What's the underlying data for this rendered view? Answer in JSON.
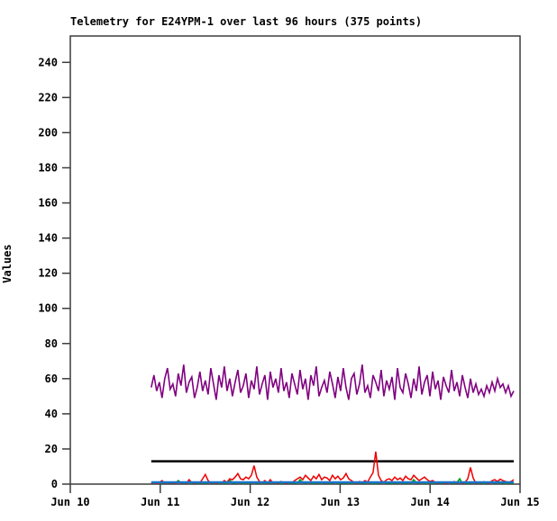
{
  "window": {
    "background": "#FFFFFF"
  },
  "chart_data": {
    "type": "line",
    "title": "Telemetry for E24YPM-1 over last 96 hours (375 points)",
    "points_stated": 375,
    "ylabel": "Values",
    "xlabel": "",
    "ylim": [
      0,
      255
    ],
    "yticks": [
      0,
      20,
      40,
      60,
      80,
      100,
      120,
      140,
      160,
      180,
      200,
      220,
      240
    ],
    "x_axis_range_days": [
      0,
      5
    ],
    "xticks": [
      {
        "day": 0,
        "label": "Jun 10"
      },
      {
        "day": 1,
        "label": "Jun 11"
      },
      {
        "day": 2,
        "label": "Jun 12"
      },
      {
        "day": 3,
        "label": "Jun 13"
      },
      {
        "day": 4,
        "label": "Jun 14"
      },
      {
        "day": 5,
        "label": "Jun 15"
      }
    ],
    "data_x_range_days": [
      0.9,
      4.93
    ],
    "grid": false,
    "legend": "none",
    "axis_color": "#3C3C3C",
    "text_color": "#000000",
    "threshold_line": {
      "name": "threshold-line",
      "value": 13,
      "color": "#000000",
      "width": 2.5
    },
    "series": [
      {
        "name": "series-purple",
        "color": "#800080",
        "width": 1.6,
        "approx_range": [
          47,
          68
        ],
        "values": [
          55,
          62,
          53,
          58,
          49,
          60,
          66,
          54,
          57,
          50,
          63,
          56,
          68,
          52,
          58,
          61,
          49,
          55,
          64,
          53,
          59,
          51,
          66,
          57,
          48,
          62,
          55,
          67,
          53,
          60,
          50,
          58,
          65,
          52,
          56,
          63,
          49,
          59,
          54,
          67,
          51,
          57,
          62,
          48,
          64,
          55,
          60,
          52,
          66,
          53,
          58,
          49,
          63,
          57,
          51,
          65,
          54,
          60,
          48,
          62,
          56,
          67,
          50,
          55,
          59,
          52,
          64,
          57,
          49,
          61,
          53,
          66,
          55,
          48,
          60,
          63,
          51,
          57,
          68,
          52,
          56,
          49,
          62,
          58,
          53,
          65,
          50,
          59,
          54,
          61,
          48,
          66,
          55,
          52,
          63,
          57,
          49,
          60,
          53,
          67,
          51,
          58,
          62,
          50,
          64,
          54,
          59,
          48,
          61,
          56,
          52,
          65,
          53,
          58,
          50,
          62,
          55,
          49,
          60,
          52,
          57,
          51,
          54,
          50,
          56,
          52,
          58,
          53,
          60,
          55,
          57,
          52,
          56,
          50,
          53
        ]
      },
      {
        "name": "series-green",
        "color": "#00A000",
        "width": 1.6,
        "approx_range": [
          0.3,
          3
        ],
        "values": [
          0.5,
          0.8,
          0.4,
          1,
          0.6,
          0.5,
          0.9,
          0.4,
          0.7,
          0.5,
          2,
          0.6,
          0.8,
          0.5,
          1,
          0.4,
          0.8,
          0.6,
          0.5,
          0.9,
          0.5,
          0.7,
          1.2,
          0.5,
          0.8,
          0.4,
          1,
          0.6,
          0.5,
          2.2,
          0.8,
          0.5,
          1,
          0.7,
          0.4,
          0.9,
          0.5,
          0.8,
          1.1,
          0.6,
          0.5,
          1,
          0.4,
          0.8,
          0.6,
          1.2,
          0.5,
          0.9,
          0.4,
          0.7,
          1,
          0.5,
          0.8,
          0.6,
          0.4,
          2.5,
          0.9,
          0.5,
          1,
          0.7,
          0.4,
          0.8,
          0.5,
          1.1,
          0.6,
          0.9,
          0.5,
          0.7,
          1,
          0.4,
          0.8,
          0.6,
          0.5,
          0.9,
          0.4,
          1,
          0.5,
          0.8,
          0.7,
          0.5,
          1.2,
          0.6,
          0.4,
          0.9,
          0.5,
          0.8,
          1,
          0.5,
          0.7,
          0.4,
          0.8,
          0.5,
          1.1,
          0.6,
          0.5,
          0.9,
          0.4,
          2.5,
          0.8,
          0.5,
          1,
          0.6,
          0.4,
          0.9,
          0.5,
          0.7,
          1.2,
          0.5,
          0.8,
          0.4,
          1,
          0.5,
          0.6,
          0.9,
          3,
          0.5,
          0.8,
          0.4,
          0.7,
          1,
          0.5,
          0.9,
          0.6,
          0.4,
          0.8,
          0.5,
          1.1,
          0.6,
          0.9,
          0.5,
          0.7,
          0.4,
          0.8,
          0.5,
          0.6
        ]
      },
      {
        "name": "series-red",
        "color": "#EE0000",
        "width": 1.5,
        "approx_range": [
          0.3,
          18.5
        ],
        "values": [
          0.5,
          1,
          0.3,
          0.8,
          2,
          0.5,
          1.2,
          0.4,
          0.9,
          0.3,
          1.5,
          0.6,
          1,
          0.4,
          2.5,
          0.8,
          0.5,
          1.1,
          0.6,
          3,
          5.5,
          2,
          0.5,
          1,
          0.4,
          1.2,
          0.6,
          2,
          1,
          3,
          2.5,
          4,
          6,
          3,
          2.5,
          4,
          3,
          5,
          10.5,
          4,
          1.5,
          0.8,
          2,
          0.5,
          2.5,
          0.6,
          1,
          0.5,
          1.5,
          0.8,
          0.4,
          1.2,
          0.7,
          2,
          3,
          4,
          2.5,
          5,
          3.5,
          2,
          4.5,
          3,
          5.5,
          2.5,
          4,
          3.5,
          2,
          5,
          3,
          4.5,
          2.5,
          3.5,
          6,
          3,
          2,
          1,
          0.5,
          1.5,
          0.8,
          2,
          1.2,
          4,
          6.5,
          18.5,
          5,
          2,
          1,
          2.5,
          3,
          2,
          4,
          2.5,
          3.5,
          2,
          4.5,
          3,
          2.5,
          5,
          3.5,
          2,
          3,
          4,
          2.5,
          1.5,
          2,
          1,
          0.5,
          1.2,
          0.8,
          0.4,
          1,
          0.6,
          1.5,
          0.5,
          0.9,
          0.4,
          1.1,
          3,
          9.5,
          3.5,
          0.5,
          1,
          0.6,
          1.4,
          0.8,
          0.5,
          2,
          2.5,
          1.5,
          2.8,
          2,
          1.5,
          1,
          1.5,
          2.5
        ]
      },
      {
        "name": "series-blue",
        "color": "#1874CD",
        "width": 2.6,
        "constant": 1,
        "length": 135
      }
    ]
  }
}
